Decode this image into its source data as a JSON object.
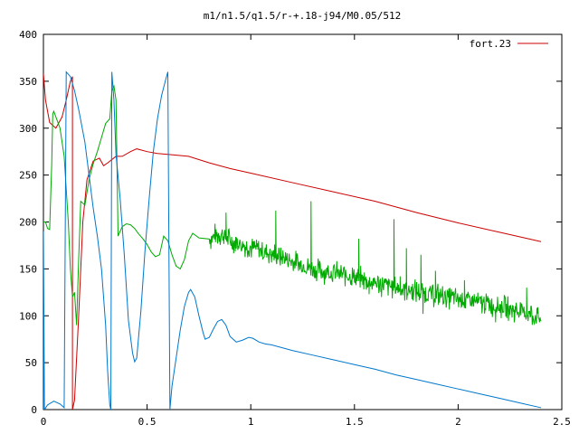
{
  "chart_data": {
    "type": "line",
    "title": "m1/n1.5/q1.5/r-+.18-j94/M0.05/512",
    "xlabel": "",
    "ylabel": "",
    "xlim": [
      0,
      2.5
    ],
    "ylim": [
      0,
      400
    ],
    "x_ticks": [
      "0",
      "0.5",
      "1",
      "1.5",
      "2",
      "2.5"
    ],
    "x_tick_values": [
      0,
      0.5,
      1,
      1.5,
      2,
      2.5
    ],
    "y_ticks": [
      "0",
      "50",
      "100",
      "150",
      "200",
      "250",
      "300",
      "350",
      "400"
    ],
    "y_tick_values": [
      0,
      50,
      100,
      150,
      200,
      250,
      300,
      350,
      400
    ],
    "grid": false,
    "legend": {
      "position": "top-right",
      "entries": [
        "fort.23"
      ]
    },
    "series": [
      {
        "name": "fort.23",
        "color": "#cc0000",
        "points": [
          [
            0,
            358
          ],
          [
            0.01,
            330
          ],
          [
            0.03,
            306
          ],
          [
            0.06,
            300
          ],
          [
            0.09,
            312
          ],
          [
            0.11,
            330
          ],
          [
            0.13,
            350
          ],
          [
            0.14,
            355
          ],
          [
            0.14,
            0
          ],
          [
            0.15,
            10
          ],
          [
            0.17,
            100
          ],
          [
            0.19,
            200
          ],
          [
            0.21,
            245
          ],
          [
            0.24,
            265
          ],
          [
            0.27,
            268
          ],
          [
            0.29,
            260
          ],
          [
            0.31,
            263
          ],
          [
            0.35,
            270
          ],
          [
            0.38,
            270
          ],
          [
            0.42,
            275
          ],
          [
            0.45,
            278
          ],
          [
            0.5,
            275
          ],
          [
            0.55,
            273
          ],
          [
            0.6,
            272
          ],
          [
            0.7,
            270
          ],
          [
            0.8,
            263
          ],
          [
            0.9,
            257
          ],
          [
            1.0,
            252
          ],
          [
            1.2,
            242
          ],
          [
            1.4,
            232
          ],
          [
            1.6,
            222
          ],
          [
            1.8,
            210
          ],
          [
            2.0,
            199
          ],
          [
            2.2,
            189
          ],
          [
            2.4,
            179
          ]
        ]
      },
      {
        "name": "",
        "color": "#00aa00",
        "points": [
          [
            0,
            200
          ],
          [
            0.01,
            200
          ],
          [
            0.02,
            193
          ],
          [
            0.03,
            192
          ],
          [
            0.04,
            262
          ],
          [
            0.045,
            315
          ],
          [
            0.05,
            318
          ],
          [
            0.06,
            312
          ],
          [
            0.08,
            300
          ],
          [
            0.1,
            270
          ],
          [
            0.12,
            200
          ],
          [
            0.13,
            150
          ],
          [
            0.14,
            120
          ],
          [
            0.15,
            125
          ],
          [
            0.16,
            90
          ],
          [
            0.17,
            160
          ],
          [
            0.18,
            222
          ],
          [
            0.2,
            218
          ],
          [
            0.22,
            245
          ],
          [
            0.24,
            262
          ],
          [
            0.26,
            275
          ],
          [
            0.28,
            290
          ],
          [
            0.3,
            305
          ],
          [
            0.32,
            310
          ],
          [
            0.33,
            340
          ],
          [
            0.34,
            345
          ],
          [
            0.35,
            330
          ],
          [
            0.36,
            185
          ],
          [
            0.38,
            195
          ],
          [
            0.4,
            198
          ],
          [
            0.42,
            197
          ],
          [
            0.44,
            193
          ],
          [
            0.46,
            187
          ],
          [
            0.48,
            182
          ],
          [
            0.5,
            176
          ],
          [
            0.52,
            168
          ],
          [
            0.54,
            163
          ],
          [
            0.56,
            165
          ],
          [
            0.57,
            175
          ],
          [
            0.58,
            185
          ],
          [
            0.6,
            180
          ],
          [
            0.62,
            165
          ],
          [
            0.64,
            153
          ],
          [
            0.66,
            150
          ],
          [
            0.68,
            160
          ],
          [
            0.7,
            180
          ],
          [
            0.72,
            188
          ],
          [
            0.75,
            183
          ],
          [
            0.8,
            182
          ],
          [
            0.85,
            188
          ],
          [
            0.9,
            180
          ],
          [
            1.0,
            173
          ],
          [
            1.1,
            166
          ],
          [
            1.2,
            158
          ],
          [
            1.3,
            150
          ],
          [
            1.4,
            146
          ],
          [
            1.5,
            141
          ],
          [
            1.6,
            135
          ],
          [
            1.7,
            130
          ],
          [
            1.8,
            126
          ],
          [
            1.9,
            122
          ],
          [
            2.0,
            118
          ],
          [
            2.1,
            114
          ],
          [
            2.2,
            110
          ],
          [
            2.3,
            105
          ],
          [
            2.4,
            97
          ]
        ],
        "noise_range": [
          0.8,
          2.4
        ],
        "noise_amplitude": 10,
        "spikes": [
          [
            0.88,
            210
          ],
          [
            1.12,
            212
          ],
          [
            1.29,
            222
          ],
          [
            1.31,
            148
          ],
          [
            1.52,
            182
          ],
          [
            1.55,
            138
          ],
          [
            1.57,
            123
          ],
          [
            1.69,
            203
          ],
          [
            1.63,
            120
          ],
          [
            1.72,
            142
          ],
          [
            1.75,
            172
          ],
          [
            1.82,
            165
          ],
          [
            1.83,
            102
          ],
          [
            1.89,
            148
          ],
          [
            1.98,
            115
          ],
          [
            2.03,
            138
          ],
          [
            2.18,
            93
          ],
          [
            2.27,
            93
          ],
          [
            2.33,
            130
          ],
          [
            2.32,
            105
          ],
          [
            2.35,
            110
          ]
        ]
      },
      {
        "name": "",
        "color": "#0077cc",
        "points": [
          [
            0,
            0
          ],
          [
            0,
            190
          ],
          [
            0.005,
            0
          ],
          [
            0.02,
            5
          ],
          [
            0.05,
            9
          ],
          [
            0.08,
            6
          ],
          [
            0.1,
            2
          ],
          [
            0.11,
            360
          ],
          [
            0.13,
            355
          ],
          [
            0.15,
            340
          ],
          [
            0.17,
            320
          ],
          [
            0.2,
            285
          ],
          [
            0.22,
            250
          ],
          [
            0.24,
            215
          ],
          [
            0.26,
            185
          ],
          [
            0.28,
            150
          ],
          [
            0.3,
            90
          ],
          [
            0.31,
            40
          ],
          [
            0.32,
            5
          ],
          [
            0.325,
            0
          ],
          [
            0.33,
            360
          ],
          [
            0.34,
            330
          ],
          [
            0.35,
            272
          ],
          [
            0.37,
            225
          ],
          [
            0.39,
            165
          ],
          [
            0.41,
            95
          ],
          [
            0.43,
            60
          ],
          [
            0.44,
            51
          ],
          [
            0.45,
            55
          ],
          [
            0.47,
            105
          ],
          [
            0.49,
            170
          ],
          [
            0.51,
            225
          ],
          [
            0.53,
            275
          ],
          [
            0.55,
            310
          ],
          [
            0.57,
            335
          ],
          [
            0.59,
            352
          ],
          [
            0.6,
            360
          ],
          [
            0.61,
            0
          ],
          [
            0.62,
            25
          ],
          [
            0.64,
            55
          ],
          [
            0.66,
            85
          ],
          [
            0.68,
            110
          ],
          [
            0.7,
            125
          ],
          [
            0.71,
            128
          ],
          [
            0.73,
            120
          ],
          [
            0.75,
            100
          ],
          [
            0.77,
            82
          ],
          [
            0.78,
            75
          ],
          [
            0.8,
            77
          ],
          [
            0.82,
            86
          ],
          [
            0.84,
            94
          ],
          [
            0.86,
            96
          ],
          [
            0.88,
            90
          ],
          [
            0.9,
            78
          ],
          [
            0.93,
            72
          ],
          [
            0.96,
            74
          ],
          [
            0.99,
            77
          ],
          [
            1.01,
            76
          ],
          [
            1.04,
            72
          ],
          [
            1.07,
            70
          ],
          [
            1.1,
            69
          ],
          [
            1.15,
            66
          ],
          [
            1.2,
            63
          ],
          [
            1.3,
            58
          ],
          [
            1.4,
            53
          ],
          [
            1.5,
            48
          ],
          [
            1.6,
            43
          ],
          [
            1.7,
            37
          ],
          [
            1.8,
            32
          ],
          [
            1.9,
            27
          ],
          [
            2.0,
            22
          ],
          [
            2.1,
            17
          ],
          [
            2.2,
            12
          ],
          [
            2.3,
            7
          ],
          [
            2.4,
            2
          ]
        ]
      }
    ]
  }
}
